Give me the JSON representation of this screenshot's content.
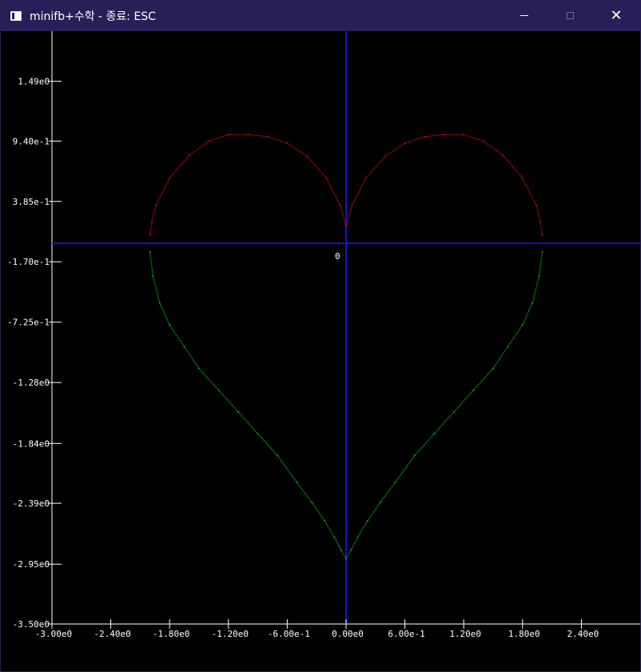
{
  "window": {
    "title": "minifb+수학 - 종료: ESC",
    "background_color": "#291e58"
  },
  "chart_data": {
    "type": "scatter",
    "title": "",
    "xlabel": "",
    "ylabel": "",
    "xlim": [
      -3.0,
      3.0
    ],
    "ylim": [
      -3.5,
      1.95
    ],
    "grid": false,
    "x_ticks": [
      {
        "value": -3.0,
        "label": "-3.00e0"
      },
      {
        "value": -2.4,
        "label": "-2.40e0"
      },
      {
        "value": -1.8,
        "label": "-1.80e0"
      },
      {
        "value": -1.2,
        "label": "-1.20e0"
      },
      {
        "value": -0.6,
        "label": "-6.00e-1"
      },
      {
        "value": 0.0,
        "label": "0.00e0"
      },
      {
        "value": 0.6,
        "label": "6.00e-1"
      },
      {
        "value": 1.2,
        "label": "1.20e0"
      },
      {
        "value": 1.8,
        "label": "1.80e0"
      },
      {
        "value": 2.4,
        "label": "2.40e0"
      }
    ],
    "y_ticks": [
      {
        "value": 1.49,
        "label": "1.49e0"
      },
      {
        "value": 0.94,
        "label": "9.40e-1"
      },
      {
        "value": 0.385,
        "label": "3.85e-1"
      },
      {
        "value": -0.17,
        "label": "-1.70e-1"
      },
      {
        "value": -0.725,
        "label": "-7.25e-1"
      },
      {
        "value": -1.28,
        "label": "-1.28e0"
      },
      {
        "value": -1.84,
        "label": "-1.84e0"
      },
      {
        "value": -2.39,
        "label": "-2.39e0"
      },
      {
        "value": -2.95,
        "label": "-2.95e0"
      },
      {
        "value": -3.5,
        "label": "-3.50e0"
      }
    ],
    "origin_label": "0",
    "colors": {
      "axis_frame": "#ffffff",
      "origin_axes": "#1414c8",
      "upper_curve": "#e01010",
      "lower_curve": "#10c010"
    },
    "series": [
      {
        "color": "#e01010",
        "x": [
          -2.0,
          -1.98,
          -1.94,
          -1.8,
          -1.6,
          -1.4,
          -1.2,
          -1.0,
          -0.8,
          -0.6,
          -0.4,
          -0.2,
          -0.06,
          0.0,
          0.06,
          0.2,
          0.4,
          0.6,
          0.8,
          1.0,
          1.2,
          1.4,
          1.6,
          1.8,
          1.94,
          1.98,
          2.0
        ],
        "y": [
          0.08,
          0.2,
          0.35,
          0.6,
          0.81,
          0.94,
          1.0,
          1.0,
          0.98,
          0.92,
          0.8,
          0.6,
          0.35,
          0.16,
          0.35,
          0.6,
          0.8,
          0.92,
          0.98,
          1.0,
          1.0,
          0.94,
          0.81,
          0.6,
          0.35,
          0.2,
          0.08
        ]
      },
      {
        "color": "#10c010",
        "x": [
          -2.0,
          -1.97,
          -1.9,
          -1.8,
          -1.65,
          -1.5,
          -1.3,
          -1.1,
          -0.9,
          -0.7,
          -0.5,
          -0.35,
          -0.22,
          -0.12,
          -0.05,
          0.0,
          0.05,
          0.12,
          0.22,
          0.35,
          0.5,
          0.7,
          0.9,
          1.1,
          1.3,
          1.5,
          1.65,
          1.8,
          1.9,
          1.97,
          2.0
        ],
        "y": [
          -0.08,
          -0.3,
          -0.55,
          -0.75,
          -0.95,
          -1.15,
          -1.35,
          -1.55,
          -1.75,
          -1.95,
          -2.2,
          -2.38,
          -2.55,
          -2.7,
          -2.82,
          -2.9,
          -2.82,
          -2.7,
          -2.55,
          -2.38,
          -2.2,
          -1.95,
          -1.75,
          -1.55,
          -1.35,
          -1.15,
          -0.95,
          -0.75,
          -0.55,
          -0.3,
          -0.08
        ]
      }
    ]
  }
}
